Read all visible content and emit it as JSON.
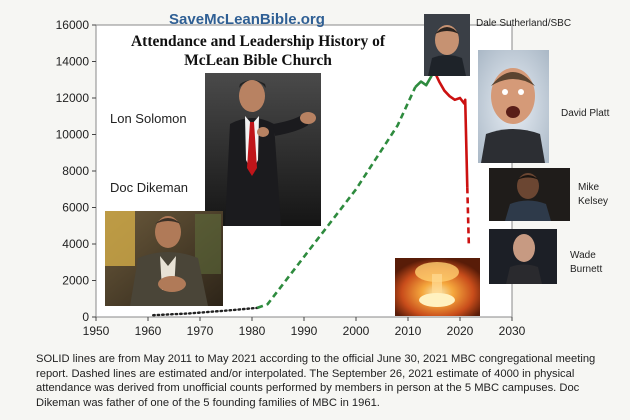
{
  "site": "SaveMcLeanBible.org",
  "title_line1": "Attendance and Leadership History of",
  "title_line2": "McLean Bible Church",
  "people": {
    "lon_solomon": "Lon Solomon",
    "doc_dikeman": "Doc Dikeman",
    "dale_sutherland": "Dale Sutherland/SBC",
    "david_platt": "David Platt",
    "mike_kelsey_1": "Mike",
    "mike_kelsey_2": "Kelsey",
    "wade_burnett_1": "Wade",
    "wade_burnett_2": "Burnett"
  },
  "footnote": "SOLID lines are from May 2011 to May 2021 according to the official June 30, 2021 MBC congregational meeting report. Dashed lines are estimated and/or interpolated. The September 26, 2021 estimate of 4000 in physical attendance was derived from unofficial counts performed by members in person at the 5 MBC campuses.  Doc Dikeman was father of one of the 5 founding families of MBC in 1961.",
  "chart_data": {
    "type": "line",
    "xlim": [
      1950,
      2030
    ],
    "ylim": [
      0,
      16000
    ],
    "x_ticks": [
      1950,
      1960,
      1970,
      1980,
      1990,
      2000,
      2010,
      2020,
      2030
    ],
    "y_ticks": [
      0,
      2000,
      4000,
      6000,
      8000,
      10000,
      12000,
      14000,
      16000
    ],
    "grid": false,
    "series": [
      {
        "style": "dotted",
        "color": "#222222",
        "x": [
          1961,
          1968,
          1975,
          1981
        ],
        "y": [
          100,
          200,
          350,
          500
        ]
      },
      {
        "style": "dashed",
        "color": "#2e8b3e",
        "x": [
          1981,
          1983,
          1990,
          2000,
          2008,
          2011.4
        ],
        "y": [
          500,
          700,
          3300,
          7000,
          10500,
          12600
        ]
      },
      {
        "style": "solid",
        "color": "#2e8b3e",
        "x": [
          2011.4,
          2012.5,
          2013.5,
          2014.5,
          2015
        ],
        "y": [
          12600,
          12900,
          12700,
          13200,
          13500
        ]
      },
      {
        "style": "solid",
        "color": "#cc1111",
        "x": [
          2015,
          2016,
          2017,
          2018,
          2019,
          2020,
          2020.8,
          2021,
          2021.4
        ],
        "y": [
          13500,
          12900,
          12400,
          12100,
          11900,
          12000,
          11700,
          11900,
          7100
        ]
      },
      {
        "style": "dashed",
        "color": "#cc1111",
        "x": [
          2021.4,
          2021.7
        ],
        "y": [
          7100,
          4000
        ]
      }
    ]
  }
}
